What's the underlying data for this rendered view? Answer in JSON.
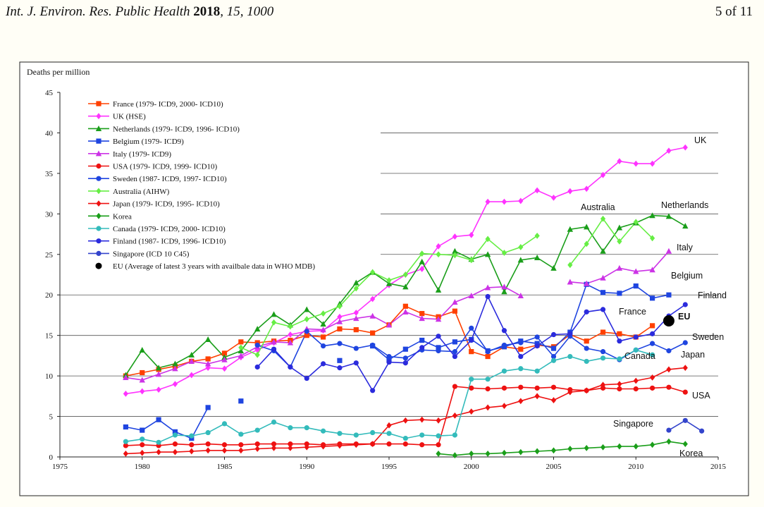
{
  "header": {
    "journal": "Int. J. Environ. Res. Public Health",
    "year": "2018",
    "volume": "15",
    "article": "1000",
    "page": "5 of 11"
  },
  "chart_data": {
    "type": "line",
    "title": "",
    "ylabel": "Deaths per million",
    "xlabel": "",
    "xlim": [
      1975,
      2015
    ],
    "ylim": [
      0,
      45
    ],
    "xticks": [
      1975,
      1980,
      1985,
      1990,
      1995,
      2000,
      2005,
      2010,
      2015
    ],
    "yticks": [
      0,
      5,
      10,
      15,
      20,
      25,
      30,
      35,
      40,
      45
    ],
    "grid": "horizontal",
    "legend_position": "top-left",
    "series": [
      {
        "name": "France (1979- ICD9, 2000- ICD10)",
        "label": "France",
        "color": "#ff4000",
        "marker": "square",
        "x": [
          1979,
          1980,
          1981,
          1982,
          1983,
          1984,
          1985,
          1986,
          1987,
          1988,
          1989,
          1990,
          1991,
          1992,
          1993,
          1994,
          1995,
          1996,
          1997,
          1998,
          1999
        ],
        "y": [
          10.0,
          10.4,
          10.8,
          11.2,
          11.8,
          12.1,
          12.8,
          14.2,
          14.1,
          14.3,
          14.4,
          15.0,
          14.8,
          15.8,
          15.7,
          15.3,
          16.3,
          18.6,
          17.7,
          17.3,
          18.0
        ],
        "x2": [
          2000,
          2001,
          2002,
          2003,
          2004,
          2005,
          2006,
          2007,
          2008,
          2009,
          2010,
          2011
        ],
        "y2": [
          13.0,
          12.4,
          13.6,
          13.3,
          13.8,
          13.6,
          15.1,
          14.3,
          15.4,
          15.2,
          14.8,
          16.2
        ]
      },
      {
        "name": "UK (HSE)",
        "label": "UK",
        "color": "#ff33ff",
        "marker": "diamond",
        "x": [
          1979,
          1980,
          1981,
          1982,
          1983,
          1984,
          1985,
          1986,
          1987,
          1988,
          1989,
          1990,
          1991,
          1992,
          1993,
          1994,
          1995,
          1996,
          1997,
          1998,
          1999,
          2000,
          2001,
          2002,
          2003,
          2004,
          2005,
          2006,
          2007,
          2008,
          2009,
          2010,
          2011,
          2012,
          2013
        ],
        "y": [
          7.8,
          8.1,
          8.3,
          9.0,
          10.1,
          11.0,
          10.9,
          12.3,
          13.2,
          14.1,
          15.1,
          15.5,
          15.6,
          17.3,
          17.8,
          19.5,
          21.2,
          22.5,
          23.2,
          26.0,
          27.2,
          27.4,
          31.5,
          31.5,
          31.6,
          32.9,
          32.0,
          32.8,
          33.1,
          34.8,
          36.5,
          36.2,
          36.2,
          37.8,
          38.2
        ]
      },
      {
        "name": "Netherlands (1979- ICD9, 1996- ICD10)",
        "label": "Netherlands",
        "color": "#1a9e1a",
        "marker": "triangle",
        "x": [
          1979,
          1980,
          1981,
          1982,
          1983,
          1984,
          1985,
          1986,
          1987,
          1988,
          1989,
          1990,
          1991,
          1992,
          1993,
          1994,
          1995
        ],
        "y": [
          10.1,
          13.2,
          11.0,
          11.5,
          12.6,
          14.5,
          12.3,
          13.1,
          15.8,
          17.6,
          16.3,
          18.2,
          16.4,
          18.9,
          21.5,
          22.8,
          21.4
        ],
        "x2": [
          1996,
          1997,
          1998,
          1999,
          2000,
          2001,
          2002,
          2003,
          2004,
          2005,
          2006,
          2007,
          2008,
          2009,
          2010,
          2011,
          2012,
          2013
        ],
        "y2": [
          21.0,
          24.1,
          20.6,
          25.4,
          24.4,
          25.0,
          20.4,
          24.3,
          24.6,
          23.3,
          28.1,
          28.4,
          25.4,
          28.3,
          28.9,
          29.8,
          29.7,
          28.5
        ]
      },
      {
        "name": "Belgium (1979- ICD9)",
        "label": "Belgium",
        "color": "#1f45e0",
        "marker": "square",
        "x": [
          1979,
          1980,
          1981,
          1982,
          1983,
          1984,
          1986,
          1992,
          1994,
          1995,
          1996,
          1997,
          1998,
          1999,
          2000,
          2001,
          2002,
          2003,
          2004,
          2005,
          2006,
          2007,
          2008,
          2009,
          2010,
          2011,
          2012
        ],
        "y": [
          3.7,
          3.3,
          4.6,
          3.1,
          2.3,
          6.1,
          6.9,
          11.9,
          13.7,
          12.0,
          13.3,
          14.4,
          13.5,
          14.2,
          14.5,
          13.1,
          13.6,
          14.3,
          14.0,
          13.4,
          15.4,
          21.3,
          20.3,
          20.2,
          21.1,
          19.6,
          20.0
        ],
        "segments": [
          [
            0,
            5
          ],
          [
            6,
            6
          ],
          [
            7,
            7
          ],
          [
            8,
            26
          ]
        ]
      },
      {
        "name": "Italy (1979- ICD9)",
        "label": "Italy",
        "color": "#cc33e6",
        "marker": "triangle",
        "x": [
          1979,
          1980,
          1981,
          1982,
          1983,
          1984,
          1985,
          1986,
          1987,
          1988,
          1989,
          1990,
          1991,
          1992,
          1993,
          1994,
          1995,
          1996,
          1997,
          1998,
          1999,
          2000,
          2001,
          2002,
          2003
        ],
        "y": [
          9.8,
          9.5,
          10.2,
          10.9,
          11.8,
          11.5,
          12.0,
          12.5,
          13.6,
          14.2,
          14.1,
          15.8,
          15.7,
          16.7,
          17.1,
          17.4,
          16.3,
          17.9,
          17.1,
          17.0,
          19.1,
          19.9,
          20.9,
          21.0,
          19.9
        ],
        "x2": [
          2006,
          2007,
          2008,
          2009,
          2010,
          2011,
          2012
        ],
        "y2": [
          21.6,
          21.4,
          22.1,
          23.3,
          22.9,
          23.1,
          25.4
        ]
      },
      {
        "name": "USA (1979- ICD9, 1999- ICD10)",
        "label": "USA",
        "color": "#ee1111",
        "marker": "circle",
        "x": [
          1979,
          1980,
          1981,
          1982,
          1983,
          1984,
          1985,
          1986,
          1987,
          1988,
          1989,
          1990,
          1991,
          1992,
          1993,
          1994,
          1995,
          1996,
          1997,
          1998
        ],
        "y": [
          1.4,
          1.5,
          1.4,
          1.6,
          1.5,
          1.6,
          1.5,
          1.5,
          1.6,
          1.6,
          1.6,
          1.6,
          1.5,
          1.6,
          1.6,
          1.6,
          1.6,
          1.6,
          1.5,
          1.5
        ],
        "x2": [
          1999,
          2000,
          2001,
          2002,
          2003,
          2004,
          2005,
          2006,
          2007,
          2008,
          2009,
          2010,
          2011,
          2012,
          2013
        ],
        "y2": [
          8.7,
          8.5,
          8.4,
          8.5,
          8.6,
          8.5,
          8.6,
          8.3,
          8.2,
          8.5,
          8.4,
          8.4,
          8.5,
          8.6,
          8.0
        ]
      },
      {
        "name": "Sweden (1987- ICD9, 1997- ICD10)",
        "label": "Sweden",
        "color": "#1f45e0",
        "marker": "circle",
        "x": [
          1987,
          1988,
          1989,
          1990,
          1991,
          1992,
          1993,
          1994,
          1995,
          1996
        ],
        "y": [
          13.8,
          13.1,
          11.1,
          15.5,
          13.7,
          14.0,
          13.4,
          13.8,
          12.4,
          12.2
        ],
        "x2": [
          1997,
          1998,
          1999,
          2000,
          2001,
          2002,
          2003,
          2004,
          2005,
          2006,
          2007,
          2008,
          2009,
          2010,
          2011,
          2012,
          2013
        ],
        "y2": [
          13.2,
          13.1,
          13.0,
          15.9,
          13.0,
          13.8,
          14.1,
          14.8,
          12.4,
          14.9,
          13.4,
          13.0,
          12.0,
          13.2,
          14.0,
          13.1,
          14.1
        ]
      },
      {
        "name": "Australia (AIHW)",
        "label": "Australia",
        "color": "#66ee44",
        "marker": "diamond",
        "x": [
          1986,
          1987,
          1988,
          1989,
          1990,
          1991,
          1992,
          1993,
          1994,
          1995,
          1996,
          1997,
          1998,
          1999,
          2000,
          2001,
          2002,
          2003,
          2004
        ],
        "y": [
          13.5,
          12.6,
          16.6,
          16.1,
          17.0,
          17.7,
          18.6,
          20.8,
          22.8,
          21.8,
          22.5,
          25.1,
          25.0,
          24.9,
          24.3,
          26.9,
          25.2,
          25.9,
          27.3
        ],
        "x2": [
          2006,
          2007,
          2008,
          2009,
          2010,
          2011
        ],
        "y2": [
          23.7,
          26.3,
          29.4,
          26.6,
          29.0,
          27.0
        ]
      },
      {
        "name": "Japan (1979- ICD9, 1995- ICD10)",
        "label": "Japan",
        "color": "#ee1111",
        "marker": "diamond",
        "x": [
          1979,
          1980,
          1981,
          1982,
          1983,
          1984,
          1985,
          1986,
          1987,
          1988,
          1989,
          1990,
          1991,
          1992,
          1993,
          1994
        ],
        "y": [
          0.4,
          0.5,
          0.6,
          0.6,
          0.7,
          0.8,
          0.8,
          0.8,
          1.0,
          1.1,
          1.1,
          1.2,
          1.3,
          1.4,
          1.5,
          1.6
        ],
        "x2": [
          1995,
          1996,
          1997,
          1998,
          1999,
          2000,
          2001,
          2002,
          2003,
          2004,
          2005,
          2006,
          2007,
          2008,
          2009,
          2010,
          2011,
          2012,
          2013
        ],
        "y2": [
          3.9,
          4.5,
          4.6,
          4.5,
          5.1,
          5.6,
          6.1,
          6.3,
          6.9,
          7.5,
          7.0,
          8.0,
          8.2,
          8.9,
          9.0,
          9.4,
          9.8,
          10.8,
          11.0
        ]
      },
      {
        "name": "Korea",
        "label": "Korea",
        "color": "#1a9e1a",
        "marker": "diamond",
        "x": [
          1998,
          1999,
          2000,
          2001,
          2002,
          2003,
          2004,
          2005,
          2006,
          2007,
          2008,
          2009,
          2010,
          2011,
          2012,
          2013
        ],
        "y": [
          0.4,
          0.2,
          0.4,
          0.4,
          0.5,
          0.6,
          0.7,
          0.8,
          1.0,
          1.1,
          1.2,
          1.3,
          1.3,
          1.5,
          1.9,
          1.6
        ]
      },
      {
        "name": "Canada (1979- ICD9, 2000- ICD10)",
        "label": "Canada",
        "color": "#33bbbb",
        "marker": "circle",
        "x": [
          1979,
          1980,
          1981,
          1982,
          1983,
          1984,
          1985,
          1986,
          1987,
          1988,
          1989,
          1990,
          1991,
          1992,
          1993,
          1994,
          1995,
          1996,
          1997,
          1998,
          1999
        ],
        "y": [
          1.9,
          2.2,
          1.8,
          2.7,
          2.6,
          3.0,
          4.1,
          2.8,
          3.3,
          4.3,
          3.6,
          3.6,
          3.2,
          2.9,
          2.7,
          3.0,
          2.9,
          2.3,
          2.7,
          2.6,
          2.7
        ],
        "x2": [
          2000,
          2001,
          2002,
          2003,
          2004,
          2005,
          2006,
          2007,
          2008,
          2009,
          2010,
          2011
        ],
        "y2": [
          9.6,
          9.6,
          10.6,
          10.9,
          10.6,
          11.9,
          12.4,
          11.8,
          12.2,
          12.1,
          13.2,
          12.6
        ]
      },
      {
        "name": "Finland (1987- ICD9, 1996- ICD10)",
        "label": "Finland",
        "color": "#2b2bdd",
        "marker": "circle",
        "x": [
          1987,
          1988,
          1989,
          1990,
          1991,
          1992,
          1993,
          1994,
          1995
        ],
        "y": [
          11.1,
          13.3,
          11.1,
          9.7,
          11.5,
          11.0,
          11.6,
          8.2,
          11.7
        ],
        "x2": [
          1996,
          1997,
          1998,
          1999,
          2000,
          2001,
          2002,
          2003,
          2004,
          2005,
          2006,
          2007,
          2008,
          2009,
          2010,
          2011,
          2012,
          2013
        ],
        "y2": [
          11.6,
          13.5,
          14.9,
          12.4,
          14.4,
          19.8,
          15.6,
          12.4,
          13.7,
          15.1,
          15.2,
          17.9,
          18.2,
          14.3,
          14.8,
          15.2,
          17.4,
          18.8
        ]
      },
      {
        "name": "Singapore (ICD 10 C45)",
        "label": "Singapore",
        "color": "#3344cc",
        "marker": "circle",
        "x": [
          2012,
          2013,
          2014
        ],
        "y": [
          3.3,
          4.5,
          3.2
        ]
      },
      {
        "name": "EU (Average of latest 3 years with availbale data in WHO MDB)",
        "label": "EU",
        "color": "#000000",
        "marker": "bigdot",
        "x": [
          2012
        ],
        "y": [
          16.8
        ]
      }
    ],
    "inline_labels": [
      "UK",
      "Netherlands",
      "Australia",
      "Italy",
      "Belgium",
      "Finland",
      "France",
      "EU",
      "Sweden",
      "Japan",
      "Canada",
      "USA",
      "Singapore",
      "Korea"
    ]
  }
}
